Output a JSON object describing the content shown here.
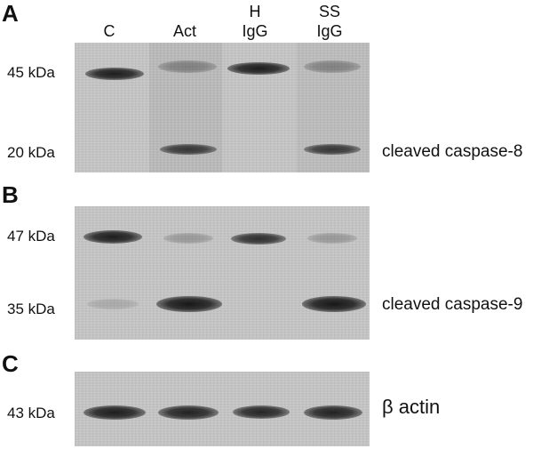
{
  "lanes": [
    {
      "line1": "",
      "line2": "C"
    },
    {
      "line1": "",
      "line2": "Act"
    },
    {
      "line1": "H",
      "line2": "IgG"
    },
    {
      "line1": "SS",
      "line2": "IgG"
    }
  ],
  "panels": [
    {
      "letter": "A",
      "bands": [
        {
          "mw": "45 kDa",
          "label": "",
          "intensity": [
            0.95,
            0.35,
            0.95,
            0.35
          ]
        },
        {
          "mw": "20 kDa",
          "label": "cleaved caspase-8",
          "intensity": [
            0.0,
            0.8,
            0.0,
            0.8
          ]
        }
      ]
    },
    {
      "letter": "B",
      "bands": [
        {
          "mw": "47 kDa",
          "label": "",
          "intensity": [
            0.95,
            0.25,
            0.85,
            0.25
          ]
        },
        {
          "mw": "35 kDa",
          "label": "cleaved caspase-9",
          "intensity": [
            0.15,
            0.98,
            0.0,
            0.98
          ]
        }
      ]
    },
    {
      "letter": "C",
      "bands": [
        {
          "mw": "43 kDa",
          "label": "β actin",
          "intensity": [
            0.95,
            0.92,
            0.9,
            0.92
          ]
        }
      ]
    }
  ],
  "colors": {
    "band": "#141414",
    "membrane": "#c6c6c6"
  }
}
